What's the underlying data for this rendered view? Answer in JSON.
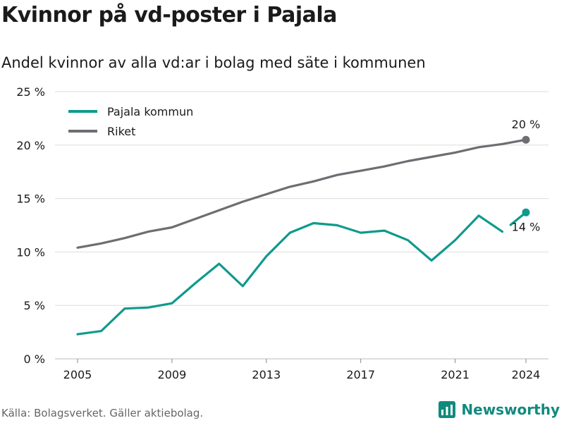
{
  "header": {
    "title": "Kvinnor på vd-poster i Pajala",
    "subtitle": "Andel kvinnor av alla vd:ar i bolag med säte i kommunen"
  },
  "footer": {
    "source": "Källa: Bolagsverket. Gäller aktiebolag.",
    "brand": "Newsworthy",
    "brand_icon": "bar-chart-logo-icon"
  },
  "colors": {
    "pajala": "#0e9a8c",
    "riket": "#6d6d72",
    "grid": "#dddddd",
    "brand": "#118a7e"
  },
  "chart_data": {
    "type": "line",
    "title": "Kvinnor på vd-poster i Pajala",
    "subtitle": "Andel kvinnor av alla vd:ar i bolag med säte i kommunen",
    "x": [
      2005,
      2006,
      2007,
      2008,
      2009,
      2010,
      2011,
      2012,
      2013,
      2014,
      2015,
      2016,
      2017,
      2018,
      2019,
      2020,
      2021,
      2022,
      2023,
      2024
    ],
    "x_ticks": [
      2005,
      2009,
      2013,
      2017,
      2021,
      2024
    ],
    "y_ticks": [
      {
        "value": 0,
        "label": "0 %"
      },
      {
        "value": 5,
        "label": "5 %"
      },
      {
        "value": 10,
        "label": "10 %"
      },
      {
        "value": 15,
        "label": "15 %"
      },
      {
        "value": 20,
        "label": "20 %"
      },
      {
        "value": 25,
        "label": "25 %"
      }
    ],
    "ylim": [
      0,
      25
    ],
    "grid": true,
    "legend_position": "top-left",
    "series": [
      {
        "name": "Pajala kommun",
        "color": "#0e9a8c",
        "values": [
          2.3,
          2.6,
          4.7,
          4.8,
          5.2,
          7.1,
          8.9,
          6.8,
          9.6,
          11.8,
          12.7,
          12.5,
          11.8,
          12.0,
          11.1,
          9.2,
          11.1,
          13.4,
          11.9,
          13.7
        ],
        "gap_before_last": true,
        "end_label": "14 %"
      },
      {
        "name": "Riket",
        "color": "#6d6d72",
        "values": [
          10.4,
          10.8,
          11.3,
          11.9,
          12.3,
          13.1,
          13.9,
          14.7,
          15.4,
          16.1,
          16.6,
          17.2,
          17.6,
          18.0,
          18.5,
          18.9,
          19.3,
          19.8,
          20.1,
          20.5
        ],
        "end_label": "20 %"
      }
    ]
  }
}
